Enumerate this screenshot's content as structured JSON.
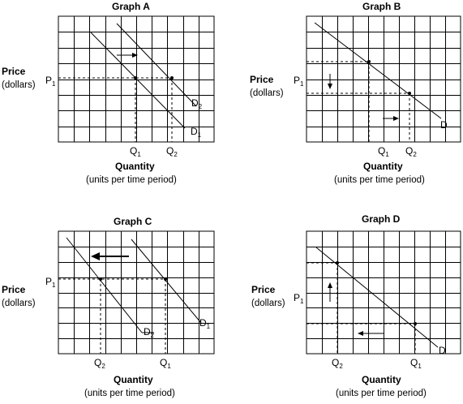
{
  "figure_type": "supply-demand panel diagrams",
  "graphs": [
    {
      "id": "A",
      "title": "Graph A",
      "y_label": "Price",
      "y_sublabel": "(dollars)",
      "x_label": "Quantity",
      "x_sublabel": "(units per time period)",
      "price_marker": {
        "base": "P",
        "sub": "1"
      },
      "quantity_markers": [
        {
          "base": "Q",
          "sub": "1"
        },
        {
          "base": "Q",
          "sub": "2"
        }
      ],
      "curve_labels": [
        {
          "base": "D",
          "sub": "2"
        },
        {
          "base": "D",
          "sub": "1"
        }
      ],
      "arrow_direction": "right"
    },
    {
      "id": "B",
      "title": "Graph B",
      "y_label": "Price",
      "y_sublabel": "(dollars)",
      "x_label": "Quantity",
      "x_sublabel": "(units per time period)",
      "price_marker": {
        "base": "P",
        "sub": "1"
      },
      "quantity_markers": [
        {
          "base": "Q",
          "sub": "1"
        },
        {
          "base": "Q",
          "sub": "2"
        }
      ],
      "curve_labels": [
        {
          "base": "D",
          "sub": ""
        }
      ],
      "arrow_direction": "down and right"
    },
    {
      "id": "C",
      "title": "Graph C",
      "y_label": "Price",
      "y_sublabel": "(dollars)",
      "x_label": "Quantity",
      "x_sublabel": "(units per time period)",
      "price_marker": {
        "base": "P",
        "sub": "1"
      },
      "quantity_markers": [
        {
          "base": "Q",
          "sub": "2"
        },
        {
          "base": "Q",
          "sub": "1"
        }
      ],
      "curve_labels": [
        {
          "base": "D",
          "sub": "1"
        },
        {
          "base": "D",
          "sub": "2"
        }
      ],
      "arrow_direction": "left"
    },
    {
      "id": "D",
      "title": "Graph D",
      "y_label": "Price",
      "y_sublabel": "(dollars)",
      "x_label": "Quantity",
      "x_sublabel": "(units per time period)",
      "price_marker": {
        "base": "P",
        "sub": "1"
      },
      "quantity_markers": [
        {
          "base": "Q",
          "sub": "2"
        },
        {
          "base": "Q",
          "sub": "1"
        }
      ],
      "curve_labels": [
        {
          "base": "D",
          "sub": ""
        }
      ],
      "arrow_direction": "up and left"
    }
  ]
}
